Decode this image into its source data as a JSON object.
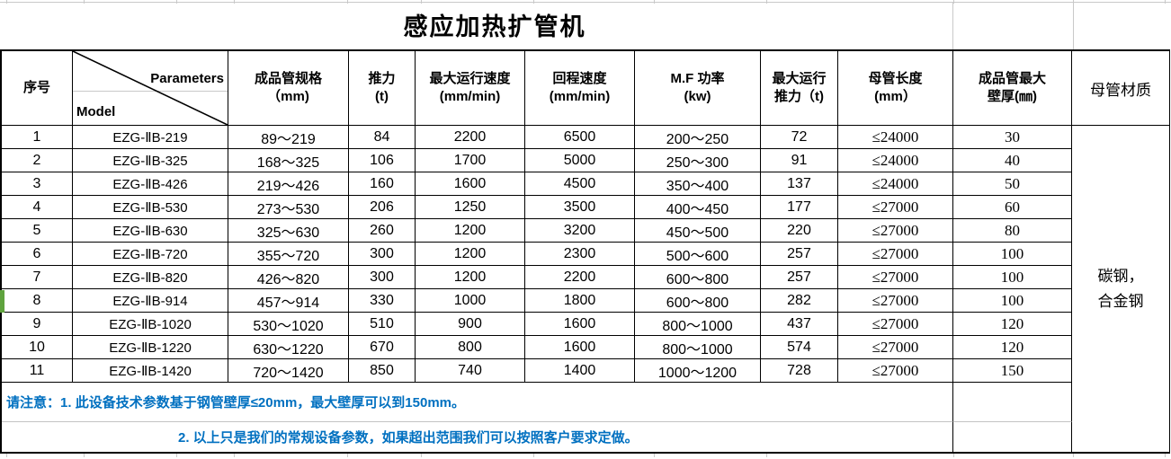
{
  "title": "感应加热扩管机",
  "header": {
    "serial": "序号",
    "diagonal": {
      "top": "Parameters",
      "bottom": "Model"
    },
    "spec1": "成品管规格",
    "spec2": "（mm)",
    "thrust1": "推力",
    "thrust2": "(t)",
    "maxspeed1": "最大运行速度",
    "maxspeed2": "(mm/min)",
    "return1": "回程速度",
    "return2": "(mm/min)",
    "mf1": "M.F 功率",
    "mf2": "(kw)",
    "maxthrust1": "最大运行",
    "maxthrust2": "推力（t)",
    "length1": "母管长度",
    "length2": "(mm）",
    "wall1": "成品管最大",
    "wall2": "壁厚(㎜)",
    "material": "母管材质"
  },
  "rows": [
    {
      "no": "1",
      "model": "EZG-ⅡB-219",
      "spec": "89～219",
      "thrust": "84",
      "max_speed": "2200",
      "return_speed": "6500",
      "mf_power": "200～250",
      "max_thrust": "72",
      "length": "≤24000",
      "wall": "30"
    },
    {
      "no": "2",
      "model": "EZG-ⅡB-325",
      "spec": "168～325",
      "thrust": "106",
      "max_speed": "1700",
      "return_speed": "5000",
      "mf_power": "250～300",
      "max_thrust": "91",
      "length": "≤24000",
      "wall": "40"
    },
    {
      "no": "3",
      "model": "EZG-ⅡB-426",
      "spec": "219～426",
      "thrust": "160",
      "max_speed": "1600",
      "return_speed": "4500",
      "mf_power": "350～400",
      "max_thrust": "137",
      "length": "≤24000",
      "wall": "50"
    },
    {
      "no": "4",
      "model": "EZG-ⅡB-530",
      "spec": "273～530",
      "thrust": "206",
      "max_speed": "1250",
      "return_speed": "3500",
      "mf_power": "400～450",
      "max_thrust": "177",
      "length": "≤27000",
      "wall": "60"
    },
    {
      "no": "5",
      "model": "EZG-ⅡB-630",
      "spec": "325～630",
      "thrust": "260",
      "max_speed": "1200",
      "return_speed": "3200",
      "mf_power": "450～500",
      "max_thrust": "220",
      "length": "≤27000",
      "wall": "80"
    },
    {
      "no": "6",
      "model": "EZG-ⅡB-720",
      "spec": "355～720",
      "thrust": "300",
      "max_speed": "1200",
      "return_speed": "2300",
      "mf_power": "500～600",
      "max_thrust": "257",
      "length": "≤27000",
      "wall": "100"
    },
    {
      "no": "7",
      "model": "EZG-ⅡB-820",
      "spec": "426～820",
      "thrust": "300",
      "max_speed": "1200",
      "return_speed": "2200",
      "mf_power": "600～800",
      "max_thrust": "257",
      "length": "≤27000",
      "wall": "100"
    },
    {
      "no": "8",
      "model": "EZG-ⅡB-914",
      "spec": "457～914",
      "thrust": "330",
      "max_speed": "1000",
      "return_speed": "1800",
      "mf_power": "600～800",
      "max_thrust": "282",
      "length": "≤27000",
      "wall": "100"
    },
    {
      "no": "9",
      "model": "EZG-ⅡB-1020",
      "spec": "530～1020",
      "thrust": "510",
      "max_speed": "900",
      "return_speed": "1600",
      "mf_power": "800～1000",
      "max_thrust": "437",
      "length": "≤27000",
      "wall": "120"
    },
    {
      "no": "10",
      "model": "EZG-ⅡB-1220",
      "spec": "630～1220",
      "thrust": "670",
      "max_speed": "800",
      "return_speed": "1600",
      "mf_power": "800～1000",
      "max_thrust": "574",
      "length": "≤27000",
      "wall": "120"
    },
    {
      "no": "11",
      "model": "EZG-ⅡB-1420",
      "spec": "720～1420",
      "thrust": "850",
      "max_speed": "740",
      "return_speed": "1400",
      "mf_power": "1000～1200",
      "max_thrust": "728",
      "length": "≤27000",
      "wall": "150"
    }
  ],
  "material": {
    "line1": "碳钢，",
    "line2": "合金钢"
  },
  "notes": {
    "label": "请注意：",
    "note1": "1. 此设备技术参数基于钢管壁厚≤20mm，最大壁厚可以到150mm。",
    "note2": "2. 以上只是我们的常规设备参数，如果超出范围我们可以按照客户要求定做。"
  },
  "colors": {
    "note_blue": "#0070C0",
    "row_marker_green": "#5FA33E",
    "gridline_faint": "#C9C9C9",
    "border_black": "#000000"
  }
}
